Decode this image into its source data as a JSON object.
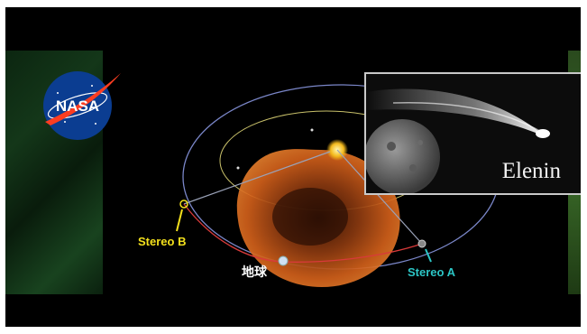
{
  "nasa_logo_text": "NASA",
  "inset": {
    "label": "Elenin"
  },
  "labels": {
    "stereo_b": "Stereo B",
    "stereo_a": "Stereo A",
    "earth": "地球"
  },
  "colors": {
    "stereo_b": "#f3e01c",
    "stereo_a": "#2cc6c6",
    "earth": "#ffffff",
    "nasa_blue": "#0b3d91",
    "nasa_red": "#fc3d21",
    "cme": "#d2601a"
  }
}
